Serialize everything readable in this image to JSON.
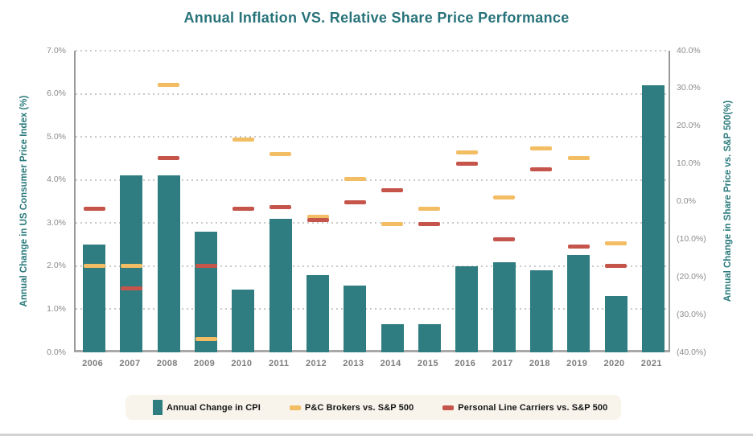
{
  "title": "Annual Inflation VS. Relative Share Price Performance",
  "left_axis": {
    "title": "Annual Change in US Consumer Price Index (%)",
    "ticks": [
      "7.0%",
      "6.0%",
      "5.0%",
      "4.0%",
      "3.0%",
      "2.0%",
      "1.0%",
      "0.0%"
    ]
  },
  "right_axis": {
    "title": "Annual Change in Share Price vs. S&P 500(%)",
    "ticks": [
      "40.0%",
      "30.0%",
      "20.0%",
      "10.0%",
      "0.0%",
      "(10.0%)",
      "(20.0%)",
      "(30.0%)",
      "(40.0%)"
    ]
  },
  "legend": {
    "items": [
      {
        "label": "Annual Change in CPI",
        "color": "#2f7d80",
        "swatch": "bar"
      },
      {
        "label": "P&C Brokers vs. S&P 500",
        "color": "#f2bd63",
        "swatch": "dash"
      },
      {
        "label": "Personal Line Carriers vs. S&P 500",
        "color": "#c5544a",
        "swatch": "dash"
      }
    ]
  },
  "colors": {
    "bar_teal": "#2f7d80",
    "broker_yellow": "#f2bd63",
    "carrier_red": "#c5544a",
    "title_teal": "#27737a",
    "gridline_gray": "#c9c9c9"
  },
  "chart_data": {
    "type": "bar",
    "subtype": "combo-bar-with-dash-markers-dual-axis",
    "title": "Annual Inflation VS. Relative Share Price Performance",
    "categories": [
      "2006",
      "2007",
      "2008",
      "2009",
      "2010",
      "2011",
      "2012",
      "2013",
      "2014",
      "2015",
      "2016",
      "2017",
      "2018",
      "2019",
      "2020",
      "2021"
    ],
    "series": [
      {
        "name": "Annual Change in CPI",
        "type": "bar",
        "axis": "left",
        "color": "#2f7d80",
        "values": [
          2.5,
          4.1,
          4.1,
          2.8,
          1.45,
          3.1,
          1.8,
          1.55,
          0.65,
          0.65,
          2.0,
          2.1,
          1.9,
          2.25,
          1.3,
          6.2
        ]
      },
      {
        "name": "P&C Brokers vs. S&P 500",
        "type": "dash-marker",
        "axis": "right",
        "color": "#f2bd63",
        "values": [
          -17,
          -17,
          31,
          -36.5,
          16.5,
          12.5,
          -4,
          6,
          -6,
          -2,
          13,
          1,
          14,
          11.5,
          -11,
          null
        ]
      },
      {
        "name": "Personal Line Carriers vs. S&P 500",
        "type": "dash-marker",
        "axis": "right",
        "color": "#c5544a",
        "values": [
          -2,
          -23,
          11.5,
          -17,
          -2,
          -1.5,
          -5,
          -0.3,
          3,
          -6,
          10,
          -10,
          8.5,
          -12,
          -17,
          null
        ]
      }
    ],
    "xlabel": "",
    "ylabel_left": "Annual Change in US Consumer Price Index (%)",
    "ylabel_right": "Annual Change in Share Price vs. S&P 500(%)",
    "left_ylim": [
      0,
      7
    ],
    "right_ylim": [
      -40,
      40
    ],
    "left_tick_step": 1,
    "right_tick_step": 10,
    "grid": "horizontal-dotted",
    "legend_position": "bottom"
  }
}
